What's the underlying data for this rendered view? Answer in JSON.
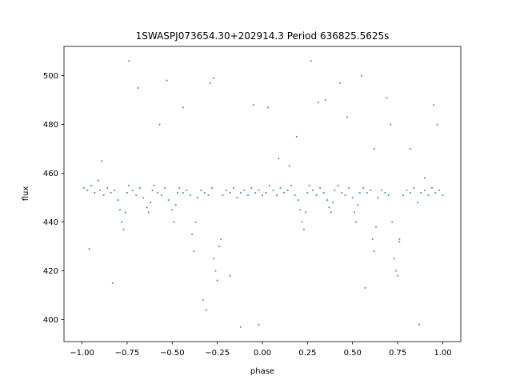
{
  "chart_data": {
    "type": "scatter",
    "title": "1SWASPJ073654.30+202914.3 Period 636825.5625s",
    "xlabel": "phase",
    "ylabel": "flux",
    "xlim": [
      -1.1,
      1.1
    ],
    "ylim": [
      391,
      512
    ],
    "x_ticks": [
      -1.0,
      -0.75,
      -0.5,
      -0.25,
      0.0,
      0.25,
      0.5,
      0.75,
      1.0
    ],
    "x_tick_labels": [
      "−1.00",
      "−0.75",
      "−0.50",
      "−0.25",
      "0.00",
      "0.25",
      "0.50",
      "0.75",
      "1.00"
    ],
    "y_ticks": [
      400,
      420,
      440,
      460,
      480,
      500
    ],
    "y_tick_labels": [
      "400",
      "420",
      "440",
      "460",
      "480",
      "500"
    ],
    "grid": false,
    "legend": "none",
    "point_color": "#1f77b4",
    "series": [
      {
        "x": [
          -0.99,
          -0.97,
          -0.95,
          -0.93,
          -0.91,
          -0.9,
          -0.88,
          -0.86,
          -0.84,
          -0.82,
          -0.8,
          -0.79,
          -0.78,
          -0.77,
          -0.76,
          -0.75,
          -0.74,
          -0.72,
          -0.7,
          -0.68,
          -0.66,
          -0.64,
          -0.63,
          -0.62,
          -0.61,
          -0.6,
          -0.58,
          -0.56,
          -0.54,
          -0.52,
          -0.5,
          -0.49,
          -0.48,
          -0.47,
          -0.46,
          -0.44,
          -0.42,
          -0.4,
          -0.39,
          -0.38,
          -0.37,
          -0.36,
          -0.34,
          -0.32,
          -0.3,
          -0.28,
          -0.27,
          -0.26,
          -0.25,
          -0.24,
          -0.22,
          -0.2,
          -0.18,
          -0.16,
          -0.14,
          -0.12,
          -0.1,
          -0.08,
          -0.06,
          -0.04,
          -0.02,
          0.0,
          0.02,
          0.04,
          0.06,
          0.08,
          0.1,
          0.12,
          0.14,
          0.16,
          0.18,
          0.2,
          0.21,
          0.22,
          0.23,
          0.24,
          0.25,
          0.26,
          0.28,
          0.3,
          0.32,
          0.34,
          0.36,
          0.37,
          0.38,
          0.39,
          0.4,
          0.42,
          0.44,
          0.46,
          0.48,
          0.5,
          0.51,
          0.52,
          0.53,
          0.54,
          0.56,
          0.58,
          0.6,
          0.61,
          0.62,
          0.63,
          0.64,
          0.66,
          0.68,
          0.7,
          0.72,
          0.73,
          0.74,
          0.75,
          0.76,
          0.78,
          0.8,
          0.82,
          0.84,
          0.86,
          0.88,
          0.9,
          0.92,
          0.94,
          0.96,
          0.98,
          1.0
        ],
        "y": [
          454,
          453,
          455,
          452,
          457,
          453,
          451,
          454,
          452,
          453,
          449,
          445,
          440,
          437,
          444,
          452,
          455,
          453,
          451,
          454,
          450,
          446,
          444,
          448,
          453,
          455,
          452,
          451,
          454,
          449,
          445,
          440,
          447,
          452,
          454,
          452,
          453,
          451,
          435,
          428,
          440,
          450,
          453,
          452,
          451,
          454,
          425,
          420,
          416,
          430,
          451,
          453,
          452,
          454,
          450,
          452,
          453,
          451,
          454,
          452,
          453,
          451,
          452,
          455,
          453,
          451,
          454,
          452,
          453,
          455,
          451,
          449,
          445,
          440,
          437,
          444,
          452,
          455,
          453,
          451,
          454,
          452,
          449,
          446,
          444,
          448,
          453,
          455,
          452,
          451,
          454,
          450,
          444,
          440,
          447,
          452,
          454,
          452,
          453,
          433,
          428,
          438,
          450,
          453,
          452,
          451,
          440,
          425,
          420,
          418,
          432,
          451,
          453,
          452,
          454,
          448,
          452,
          453,
          451,
          454,
          452,
          453,
          451
        ]
      },
      {
        "x": [
          -0.96,
          -0.89,
          -0.83,
          -0.74,
          -0.69,
          -0.57,
          -0.53,
          -0.44,
          -0.33,
          -0.31,
          -0.29,
          -0.27,
          -0.23,
          -0.18,
          -0.12,
          -0.05,
          -0.02,
          0.03,
          0.09,
          0.15,
          0.19,
          0.27,
          0.31,
          0.35,
          0.43,
          0.47,
          0.55,
          0.57,
          0.62,
          0.69,
          0.71,
          0.76,
          0.82,
          0.87,
          0.9,
          0.95,
          0.97
        ],
        "y": [
          429,
          465,
          415,
          506,
          495,
          480,
          498,
          487,
          408,
          404,
          497,
          499,
          433,
          418,
          397,
          488,
          398,
          487,
          466,
          463,
          475,
          506,
          489,
          490,
          497,
          483,
          500,
          413,
          470,
          491,
          480,
          433,
          470,
          398,
          458,
          488,
          480
        ]
      }
    ]
  }
}
